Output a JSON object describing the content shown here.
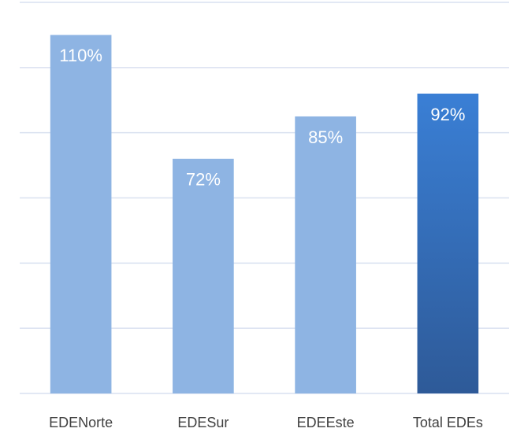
{
  "chart_data": {
    "type": "bar",
    "categories": [
      "EDENorte",
      "EDESur",
      "EDEEste",
      "Total EDEs"
    ],
    "values": [
      110,
      72,
      85,
      92
    ],
    "value_labels": [
      "110%",
      "72%",
      "85%",
      "92%"
    ],
    "colors": [
      "#8eb4e3",
      "#8eb4e3",
      "#8eb4e3",
      "#3a7fd5"
    ],
    "ylim": [
      0,
      120
    ],
    "yticks": [
      0,
      20,
      40,
      60,
      80,
      100,
      120
    ],
    "grid": true
  }
}
